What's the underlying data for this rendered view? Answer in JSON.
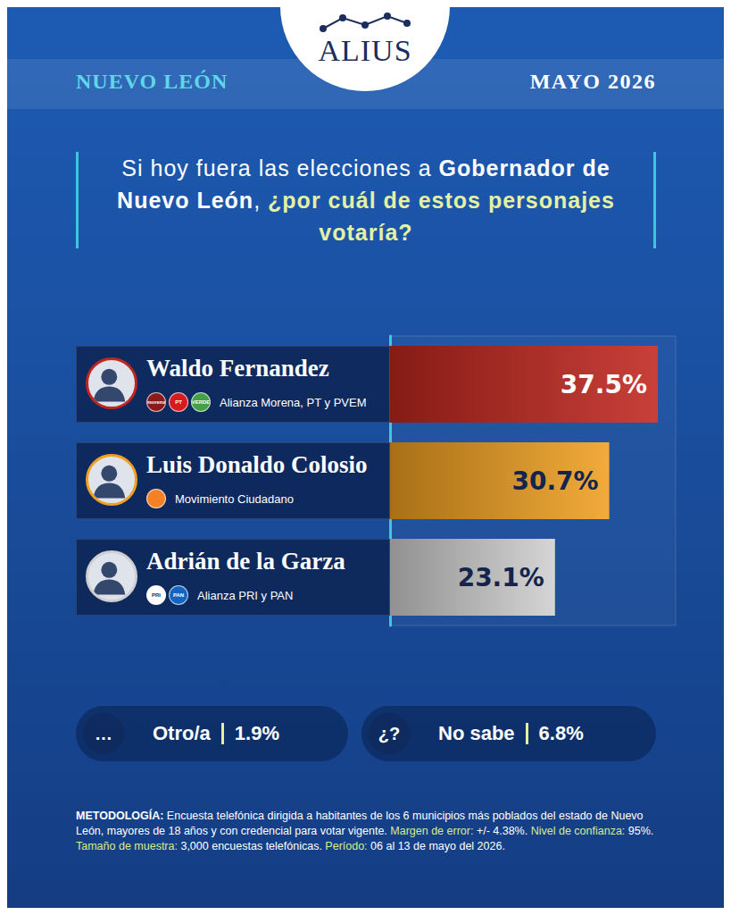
{
  "header": {
    "brand": "ALIUS",
    "region": "NUEVO LEÓN",
    "date": "MAYO 2026"
  },
  "question": [
    {
      "text": "Si hoy fuera las elecciones a ",
      "style": "normal"
    },
    {
      "text": "Gobernador de Nuevo León",
      "style": "bold"
    },
    {
      "text": ", ",
      "style": "normal"
    },
    {
      "text": "¿por cuál de estos personajes votaría?",
      "style": "highlight"
    }
  ],
  "chart_data": {
    "type": "bar",
    "orientation": "horizontal",
    "categories": [
      "Waldo Fernandez",
      "Luis Donaldo Colosio",
      "Adrián de la Garza"
    ],
    "parties": [
      "Alianza Morena, PT y PVEM",
      "Movimiento Ciudadano",
      "Alianza PRI y PAN"
    ],
    "party_logos": [
      [
        {
          "label": "morena",
          "color": "#8b1a1a"
        },
        {
          "label": "PT",
          "color": "#d71920"
        },
        {
          "label": "VERDE",
          "color": "#43a047"
        }
      ],
      [
        {
          "color": "#f58025"
        }
      ],
      [
        {
          "label": "PRI",
          "color": "#ffffff"
        },
        {
          "label": "PAN",
          "color": "#1565c0"
        }
      ]
    ],
    "values": [
      37.5,
      30.7,
      23.1
    ],
    "value_labels": [
      "37.5%",
      "30.7%",
      "23.1%"
    ],
    "colors": [
      "#c0261e",
      "#f0a020",
      "#cfcfcf"
    ],
    "xlim": [
      0,
      40
    ],
    "data_labels": true,
    "tick_labels": false,
    "grid": false
  },
  "other_responses": [
    {
      "icon": "…",
      "label": "Otro/a",
      "value": "1.9%"
    },
    {
      "icon": "¿?",
      "label": "No sabe",
      "value": "6.8%"
    }
  ],
  "methodology": [
    {
      "text": "METODOLOGÍA:",
      "style": "bold"
    },
    {
      "text": " Encuesta telefónica dirigida a habitantes de los 6 municipios más poblados del estado de Nuevo León, mayores de 18 años y con credencial para votar vigente. ",
      "style": "normal"
    },
    {
      "text": "Margen de error:",
      "style": "highlight"
    },
    {
      "text": " +/- 4.38%. ",
      "style": "normal"
    },
    {
      "text": "Nivel de confianza:",
      "style": "highlight"
    },
    {
      "text": " 95%. ",
      "style": "normal"
    },
    {
      "text": "Tamaño de muestra:",
      "style": "highlight"
    },
    {
      "text": " 3,000 encuestas telefónicas. ",
      "style": "normal"
    },
    {
      "text": "Período:",
      "style": "highlight"
    },
    {
      "text": " 06 al 13 de mayo del 2026.",
      "style": "normal"
    }
  ]
}
